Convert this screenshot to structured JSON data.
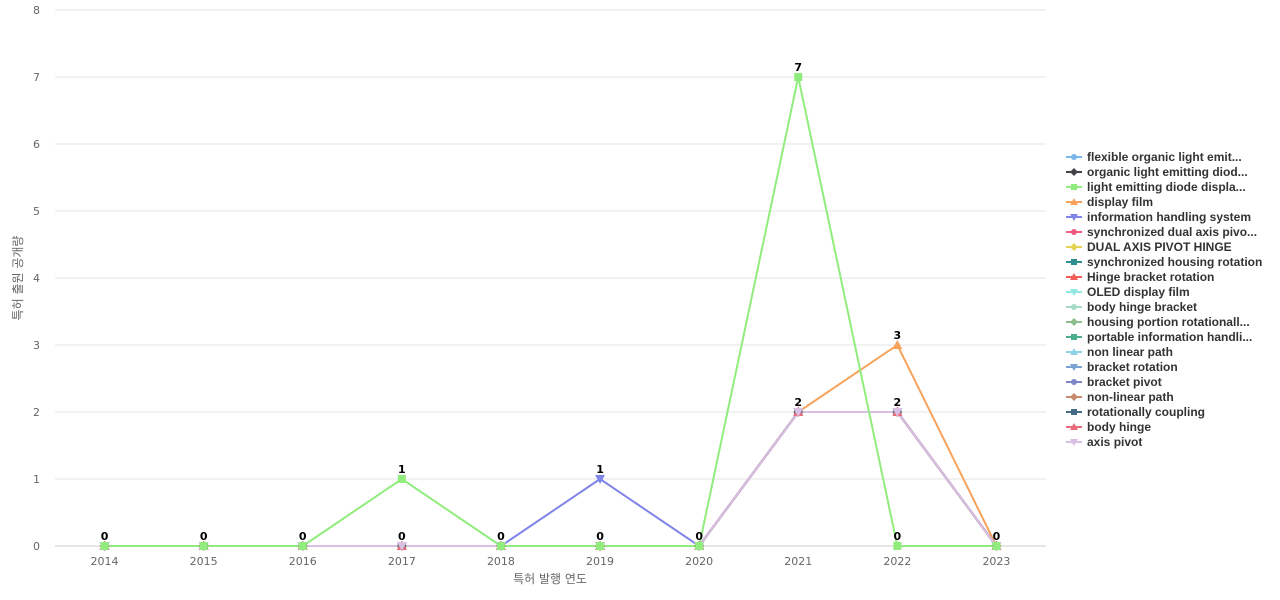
{
  "chart_data": {
    "type": "line",
    "title": "",
    "xlabel": "특허 발행 연도",
    "ylabel": "특허 출원 공개량",
    "ylim": [
      0,
      8
    ],
    "yticks": [
      0,
      1,
      2,
      3,
      4,
      5,
      6,
      7,
      8
    ],
    "x": [
      "2014",
      "2015",
      "2016",
      "2017",
      "2018",
      "2019",
      "2020",
      "2021",
      "2022",
      "2023"
    ],
    "grid": true,
    "legend_position": "right",
    "series": [
      {
        "name": "flexible organic light emit...",
        "color": "#7cb5ec",
        "marker": "circle",
        "values": [
          0,
          0,
          0,
          0,
          0,
          0,
          0,
          2,
          2,
          0
        ]
      },
      {
        "name": "organic light emitting diod...",
        "color": "#434348",
        "marker": "diamond",
        "values": [
          0,
          0,
          0,
          0,
          0,
          0,
          0,
          2,
          2,
          0
        ]
      },
      {
        "name": "light emitting diode displa...",
        "color": "#90ed7d",
        "marker": "square",
        "values": [
          0,
          0,
          0,
          1,
          0,
          0,
          0,
          7,
          0,
          0
        ]
      },
      {
        "name": "display film",
        "color": "#f7a35c",
        "marker": "triangle",
        "values": [
          0,
          0,
          0,
          0,
          0,
          0,
          0,
          2,
          3,
          0
        ]
      },
      {
        "name": "information handling system",
        "color": "#8085e9",
        "marker": "triangle-down",
        "values": [
          0,
          0,
          0,
          0,
          0,
          1,
          0,
          2,
          2,
          0
        ]
      },
      {
        "name": "synchronized dual axis pivo...",
        "color": "#f15c80",
        "marker": "circle",
        "values": [
          0,
          0,
          0,
          0,
          0,
          0,
          0,
          2,
          2,
          0
        ]
      },
      {
        "name": "DUAL AXIS PIVOT HINGE",
        "color": "#e4d354",
        "marker": "diamond",
        "values": [
          0,
          0,
          0,
          0,
          0,
          0,
          0,
          2,
          2,
          0
        ]
      },
      {
        "name": "synchronized housing rotation",
        "color": "#2b908f",
        "marker": "square",
        "values": [
          0,
          0,
          0,
          0,
          0,
          0,
          0,
          2,
          2,
          0
        ]
      },
      {
        "name": "Hinge bracket rotation",
        "color": "#f45b5b",
        "marker": "triangle",
        "values": [
          0,
          0,
          0,
          0,
          0,
          0,
          0,
          2,
          2,
          0
        ]
      },
      {
        "name": "OLED display film",
        "color": "#91e8e1",
        "marker": "triangle-down",
        "values": [
          0,
          0,
          0,
          0,
          0,
          0,
          0,
          2,
          2,
          0
        ]
      },
      {
        "name": "body hinge bracket",
        "color": "#a8dbc4",
        "marker": "circle",
        "values": [
          0,
          0,
          0,
          0,
          0,
          0,
          0,
          2,
          2,
          0
        ]
      },
      {
        "name": "housing portion rotationall...",
        "color": "#8fbc8f",
        "marker": "diamond",
        "values": [
          0,
          0,
          0,
          0,
          0,
          0,
          0,
          2,
          2,
          0
        ]
      },
      {
        "name": "portable information handli...",
        "color": "#4cb08f",
        "marker": "square",
        "values": [
          0,
          0,
          0,
          0,
          0,
          0,
          0,
          2,
          2,
          0
        ]
      },
      {
        "name": "non linear path",
        "color": "#8fd3e8",
        "marker": "triangle",
        "values": [
          0,
          0,
          0,
          0,
          0,
          0,
          0,
          2,
          2,
          0
        ]
      },
      {
        "name": "bracket rotation",
        "color": "#7ba3d1",
        "marker": "triangle-down",
        "values": [
          0,
          0,
          0,
          0,
          0,
          0,
          0,
          2,
          2,
          0
        ]
      },
      {
        "name": "bracket pivot",
        "color": "#7b86c9",
        "marker": "circle",
        "values": [
          0,
          0,
          0,
          0,
          0,
          0,
          0,
          2,
          2,
          0
        ]
      },
      {
        "name": "non-linear path",
        "color": "#c88a6f",
        "marker": "diamond",
        "values": [
          0,
          0,
          0,
          0,
          0,
          0,
          0,
          2,
          2,
          0
        ]
      },
      {
        "name": "rotationally coupling",
        "color": "#456b86",
        "marker": "square",
        "values": [
          0,
          0,
          0,
          0,
          0,
          0,
          0,
          2,
          2,
          0
        ]
      },
      {
        "name": "body hinge",
        "color": "#e96b7a",
        "marker": "triangle",
        "values": [
          0,
          0,
          0,
          0,
          0,
          0,
          0,
          2,
          2,
          0
        ]
      },
      {
        "name": "axis pivot",
        "color": "#d8bfe3",
        "marker": "triangle-down",
        "values": [
          0,
          0,
          0,
          0,
          0,
          0,
          0,
          2,
          2,
          0
        ]
      }
    ],
    "data_labels": [
      {
        "x": "2014",
        "value": 0
      },
      {
        "x": "2015",
        "value": 0
      },
      {
        "x": "2016",
        "value": 0
      },
      {
        "x": "2017",
        "value": 1
      },
      {
        "x": "2017",
        "value": 0
      },
      {
        "x": "2018",
        "value": 0
      },
      {
        "x": "2019",
        "value": 1
      },
      {
        "x": "2019",
        "value": 0
      },
      {
        "x": "2020",
        "value": 0
      },
      {
        "x": "2021",
        "value": 7
      },
      {
        "x": "2021",
        "value": 2
      },
      {
        "x": "2022",
        "value": 3
      },
      {
        "x": "2022",
        "value": 2
      },
      {
        "x": "2022",
        "value": 0
      },
      {
        "x": "2023",
        "value": 0
      }
    ]
  }
}
